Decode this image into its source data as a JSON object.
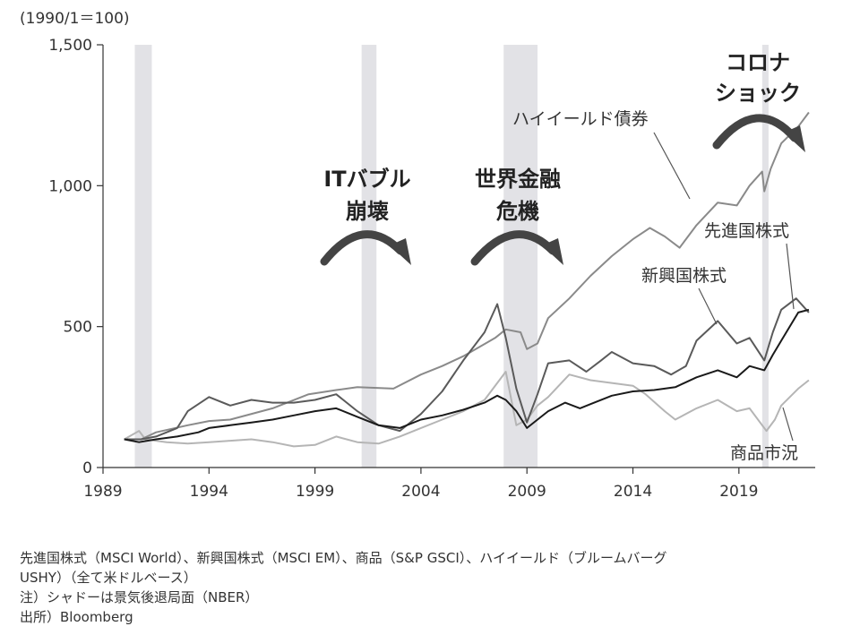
{
  "chart_data": {
    "type": "line",
    "y_unit_label": "(1990/1＝100)",
    "ylim": [
      0,
      1500
    ],
    "yticks": [
      0,
      500,
      1000,
      1500
    ],
    "ytick_labels": [
      "0",
      "500",
      "1,000",
      "1,500"
    ],
    "xlim": [
      1989,
      2022.6
    ],
    "xticks": [
      1989,
      1994,
      1999,
      2004,
      2009,
      2014,
      2019
    ],
    "xtick_labels": [
      "1989",
      "1994",
      "1999",
      "2004",
      "2009",
      "2014",
      "2019"
    ],
    "grid": false,
    "shaded_recessions": [
      [
        1990.5,
        1991.3
      ],
      [
        2001.2,
        2001.9
      ],
      [
        2007.9,
        2009.5
      ],
      [
        2020.1,
        2020.4
      ]
    ],
    "events": [
      {
        "label_lines": [
          "ITバブル",
          "崩壊"
        ]
      },
      {
        "label_lines": [
          "世界金融",
          "危機"
        ]
      },
      {
        "label_lines": [
          "コロナ",
          "ショック"
        ]
      }
    ],
    "series": [
      {
        "name": "ハイイールド債券",
        "color": "#8a8a8a",
        "x": [
          1990,
          1990.8,
          1991.5,
          1993,
          1994,
          1995,
          1997,
          1998.7,
          2000,
          2001,
          2002.7,
          2004,
          2005,
          2006,
          2007.5,
          2008,
          2008.7,
          2009,
          2009.5,
          2010,
          2011,
          2012,
          2013,
          2014,
          2014.8,
          2015.5,
          2016.2,
          2017,
          2018,
          2018.9,
          2019.5,
          2020.1,
          2020.2,
          2020.5,
          2021,
          2021.8,
          2022.3
        ],
        "y": [
          100,
          100,
          125,
          150,
          165,
          170,
          210,
          260,
          275,
          285,
          280,
          330,
          360,
          395,
          460,
          490,
          480,
          420,
          440,
          530,
          600,
          680,
          750,
          810,
          850,
          820,
          780,
          860,
          940,
          930,
          1000,
          1050,
          980,
          1060,
          1150,
          1210,
          1260
        ]
      },
      {
        "name": "先進国株式",
        "color": "#1a1a1a",
        "x": [
          1990,
          1990.7,
          1991.5,
          1992.5,
          1993.5,
          1994,
          1995,
          1996,
          1997,
          1998,
          1999,
          2000,
          2001,
          2002,
          2003,
          2004,
          2005,
          2006,
          2007,
          2007.6,
          2008,
          2008.5,
          2009,
          2009.5,
          2010,
          2010.8,
          2011.5,
          2012,
          2013,
          2014,
          2015,
          2016,
          2017,
          2018,
          2018.9,
          2019.5,
          2020.2,
          2020.6,
          2021,
          2021.8,
          2022.3
        ],
        "y": [
          100,
          90,
          100,
          110,
          125,
          140,
          150,
          160,
          170,
          185,
          200,
          210,
          180,
          150,
          140,
          170,
          185,
          205,
          230,
          255,
          240,
          200,
          140,
          170,
          200,
          230,
          210,
          225,
          255,
          270,
          275,
          285,
          320,
          345,
          320,
          360,
          345,
          400,
          450,
          550,
          560
        ]
      },
      {
        "name": "新興国株式",
        "color": "#5a5a5a",
        "x": [
          1990,
          1990.8,
          1991.5,
          1992.5,
          1993,
          1994,
          1995,
          1996,
          1997,
          1998,
          1999,
          2000,
          2001,
          2002,
          2003,
          2004,
          2005,
          2006,
          2007,
          2007.6,
          2008,
          2008.5,
          2009,
          2009.5,
          2010,
          2011,
          2011.8,
          2012.5,
          2013,
          2014,
          2015,
          2015.8,
          2016.5,
          2017,
          2018,
          2018.9,
          2019.5,
          2020.2,
          2020.6,
          2021,
          2021.7,
          2022.3
        ],
        "y": [
          100,
          100,
          110,
          140,
          200,
          250,
          220,
          240,
          230,
          230,
          240,
          260,
          200,
          150,
          130,
          190,
          270,
          380,
          480,
          580,
          460,
          280,
          160,
          260,
          370,
          380,
          340,
          380,
          410,
          370,
          360,
          330,
          360,
          450,
          520,
          440,
          460,
          380,
          480,
          560,
          600,
          550
        ]
      },
      {
        "name": "商品市況",
        "color": "#b5b5b5",
        "x": [
          1990,
          1990.7,
          1991,
          1992,
          1993,
          1994,
          1995,
          1996,
          1997,
          1998,
          1999,
          2000,
          2001,
          2002,
          2003,
          2004,
          2005,
          2006,
          2007,
          2007.6,
          2008,
          2008.5,
          2009,
          2009.5,
          2010,
          2011,
          2012,
          2013,
          2014,
          2014.6,
          2015.5,
          2016,
          2017,
          2018,
          2018.9,
          2019.5,
          2020.1,
          2020.3,
          2020.7,
          2021,
          2021.8,
          2022.3
        ],
        "y": [
          100,
          130,
          100,
          90,
          85,
          90,
          95,
          100,
          90,
          75,
          80,
          110,
          90,
          85,
          110,
          140,
          170,
          200,
          240,
          300,
          340,
          150,
          170,
          220,
          250,
          330,
          310,
          300,
          290,
          260,
          200,
          170,
          210,
          240,
          200,
          210,
          150,
          130,
          170,
          220,
          280,
          310
        ]
      }
    ]
  },
  "series_labels": {
    "high_yield": "ハイイールド債券",
    "developed": "先進国株式",
    "emerging": "新興国株式",
    "commodity": "商品市況"
  },
  "notes": {
    "line1": "先進国株式（MSCI World）、新興国株式（MSCI EM）、商品（S&P GSCI）、ハイイールド（ブルームバーグ",
    "line2": "USHY）（全て米ドルベース）",
    "line3": "注）シャドーは景気後退局面（NBER）",
    "line4": "出所）Bloomberg"
  }
}
